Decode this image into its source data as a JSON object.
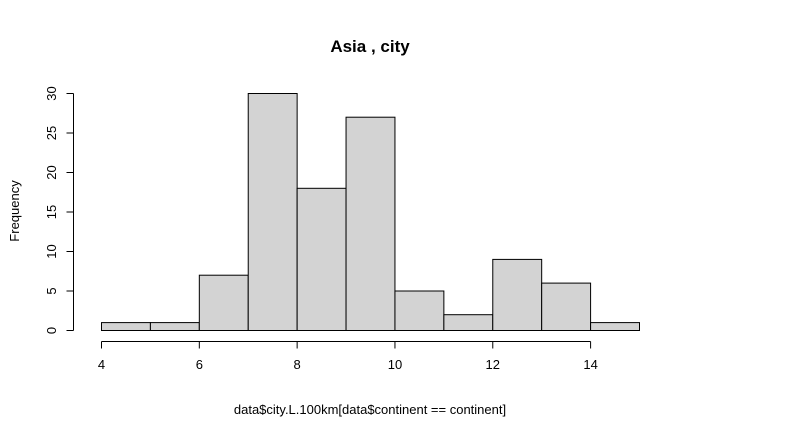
{
  "chart_data": {
    "type": "bar",
    "title": "Asia , city",
    "xlabel": "data$city.L.100km[data$continent == continent]",
    "ylabel": "Frequency",
    "bins": [
      {
        "x0": 4,
        "x1": 5,
        "count": 1
      },
      {
        "x0": 5,
        "x1": 6,
        "count": 1
      },
      {
        "x0": 6,
        "x1": 7,
        "count": 7
      },
      {
        "x0": 7,
        "x1": 8,
        "count": 30
      },
      {
        "x0": 8,
        "x1": 9,
        "count": 18
      },
      {
        "x0": 9,
        "x1": 10,
        "count": 27
      },
      {
        "x0": 10,
        "x1": 11,
        "count": 5
      },
      {
        "x0": 11,
        "x1": 12,
        "count": 2
      },
      {
        "x0": 12,
        "x1": 13,
        "count": 9
      },
      {
        "x0": 13,
        "x1": 14,
        "count": 6
      },
      {
        "x0": 14,
        "x1": 15,
        "count": 1
      }
    ],
    "xlim": [
      4,
      15
    ],
    "ylim": [
      0,
      30
    ],
    "x_ticks": [
      4,
      6,
      8,
      10,
      12,
      14
    ],
    "y_ticks": [
      0,
      5,
      10,
      15,
      20,
      25,
      30
    ],
    "bar_color": "#d3d3d3",
    "grid": false,
    "legend": "none"
  }
}
